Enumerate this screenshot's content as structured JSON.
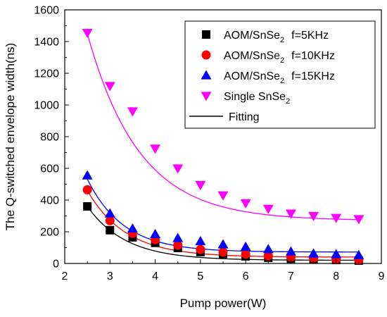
{
  "chart_data": {
    "type": "scatter",
    "title": "",
    "xlabel": "Pump power(W)",
    "ylabel": "The Q-switched envelope width(ns)",
    "xlim": [
      2,
      9
    ],
    "ylim": [
      0,
      1600
    ],
    "xticks": [
      2,
      3,
      4,
      5,
      6,
      7,
      8,
      9
    ],
    "yticks": [
      0,
      200,
      400,
      600,
      800,
      1000,
      1200,
      1400,
      1600
    ],
    "grid": false,
    "legend_position": "top-right",
    "x": [
      2.5,
      3.0,
      3.5,
      4.0,
      4.5,
      5.0,
      5.5,
      6.0,
      6.5,
      7.0,
      7.5,
      8.0,
      8.5
    ],
    "series": [
      {
        "name": "AOM/SnSe",
        "name_sub": "2",
        "name_suffix": "f=5KHz",
        "marker": "square",
        "color": "#000000",
        "values": [
          360,
          210,
          165,
          130,
          98,
          72,
          60,
          45,
          36,
          30,
          25,
          22,
          18
        ]
      },
      {
        "name": "AOM/SnSe",
        "name_sub": "2",
        "name_suffix": "f=10KHz",
        "marker": "circle",
        "color": "#ff0000",
        "values": [
          465,
          270,
          190,
          150,
          115,
          88,
          72,
          58,
          48,
          40,
          34,
          28,
          24
        ]
      },
      {
        "name": "AOM/SnSe",
        "name_sub": "2",
        "name_suffix": "f=15KHz",
        "marker": "triangle-up",
        "color": "#0000ff",
        "values": [
          555,
          315,
          220,
          185,
          160,
          140,
          120,
          105,
          90,
          75,
          62,
          58,
          52
        ]
      },
      {
        "name": "Single SnSe",
        "name_sub": "2",
        "name_suffix": "",
        "marker": "triangle-down",
        "color": "#ff00ff",
        "values": [
          1455,
          1120,
          960,
          725,
          600,
          495,
          430,
          380,
          345,
          315,
          300,
          288,
          280
        ]
      }
    ],
    "fitting": {
      "name": "Fitting",
      "color": "#000000",
      "curves": [
        {
          "color": "#000000",
          "y0": 20,
          "A": 340,
          "t": 0.85
        },
        {
          "color": "#ff0000",
          "y0": 40,
          "A": 420,
          "t": 0.85
        },
        {
          "color": "#0000ff",
          "y0": 72,
          "A": 460,
          "t": 0.8
        },
        {
          "color": "#ff00ff",
          "y0": 270,
          "A": 1180,
          "t": 1.15
        }
      ]
    }
  }
}
